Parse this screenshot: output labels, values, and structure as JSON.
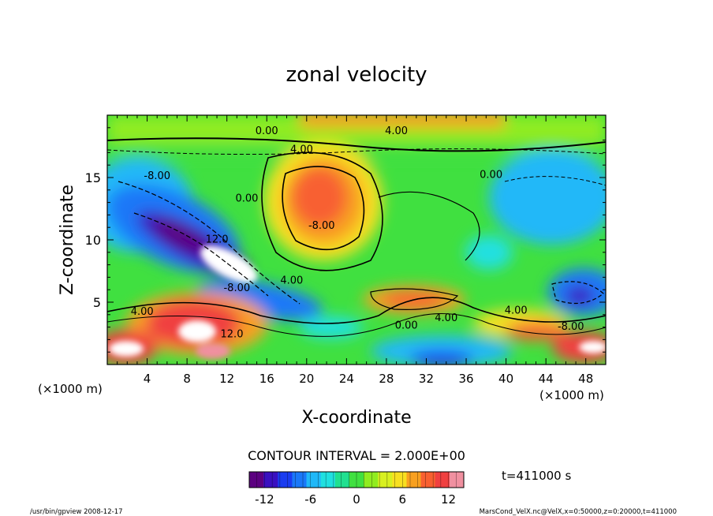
{
  "chart_data": {
    "type": "heatmap",
    "title": "zonal velocity",
    "xlabel": "X-coordinate",
    "ylabel": "Z-coordinate",
    "x_unit_left": "(×1000 m)",
    "x_unit_right": "(×1000 m)",
    "xlim": [
      0,
      50
    ],
    "ylim": [
      0,
      20
    ],
    "xticks": [
      4,
      8,
      12,
      16,
      20,
      24,
      28,
      32,
      36,
      40,
      44,
      48
    ],
    "yticks": [
      5,
      10,
      15
    ],
    "contour_interval": "CONTOUR INTERVAL = 2.000E+00",
    "time_label": "t=411000 s",
    "colorbar": {
      "min": -14,
      "max": 14,
      "ticks": [
        -12,
        -6,
        0,
        6,
        12
      ],
      "colors": [
        "#5c0080",
        "#3a10c0",
        "#1a3cf0",
        "#1a78f8",
        "#20b8f8",
        "#20e0e0",
        "#20e090",
        "#40e040",
        "#90ec20",
        "#d8f020",
        "#f8e020",
        "#f8a020",
        "#f86030",
        "#f04040",
        "#f090a0"
      ]
    },
    "contour_labels": [
      {
        "text": "0.00",
        "x": 16,
        "y": 18.8
      },
      {
        "text": "4.00",
        "x": 29,
        "y": 18.8
      },
      {
        "text": "4.00",
        "x": 19.5,
        "y": 17.3
      },
      {
        "text": "-8.00",
        "x": 5,
        "y": 15.2
      },
      {
        "text": "0.00",
        "x": 14,
        "y": 13.4
      },
      {
        "text": "-8.00",
        "x": 21.5,
        "y": 11.2
      },
      {
        "text": "0.00",
        "x": 38.5,
        "y": 15.3
      },
      {
        "text": "12.0",
        "x": 11,
        "y": 10.1
      },
      {
        "text": "-8.00",
        "x": 13,
        "y": 6.2
      },
      {
        "text": "4.00",
        "x": 18.5,
        "y": 6.8
      },
      {
        "text": "4.00",
        "x": 3.5,
        "y": 4.3
      },
      {
        "text": "12.0",
        "x": 12.5,
        "y": 2.5
      },
      {
        "text": "0.00",
        "x": 30,
        "y": 3.2
      },
      {
        "text": "4.00",
        "x": 34,
        "y": 3.8
      },
      {
        "text": "4.00",
        "x": 41,
        "y": 4.4
      },
      {
        "text": "-8.00",
        "x": 46.5,
        "y": 3.1
      }
    ]
  },
  "footer": {
    "left": "/usr/bin/gpview  2008-12-17",
    "right": "MarsCond_VelX.nc@VelX,x=0:50000,z=0:20000,t=411000"
  }
}
